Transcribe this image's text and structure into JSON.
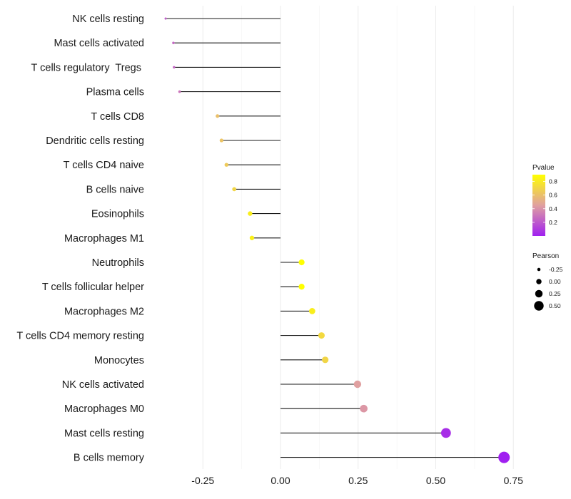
{
  "chart_data": {
    "type": "lollipop",
    "title": "",
    "xlabel": "",
    "ylabel": "",
    "xlim": [
      -0.37,
      0.77
    ],
    "x_ticks": [
      -0.25,
      0.0,
      0.25,
      0.5,
      0.75
    ],
    "x_tick_labels": [
      "-0.25",
      "0.00",
      "0.25",
      "0.50",
      "0.75"
    ],
    "categories": [
      "NK cells resting",
      "Mast cells activated",
      "T cells regulatory  Tregs ",
      "Plasma cells",
      "T cells CD8",
      "Dendritic cells resting",
      "T cells CD4 naive",
      "B cells naive",
      "Eosinophils",
      "Macrophages M1",
      "Neutrophils",
      "T cells follicular helper",
      "Macrophages M2",
      "T cells CD4 memory resting",
      "Monocytes",
      "NK cells activated",
      "Macrophages M0",
      "Mast cells resting",
      "B cells memory"
    ],
    "pearson": [
      -0.37,
      -0.345,
      -0.343,
      -0.325,
      -0.203,
      -0.19,
      -0.174,
      -0.149,
      -0.098,
      -0.092,
      0.068,
      0.068,
      0.102,
      0.132,
      0.144,
      0.248,
      0.268,
      0.533,
      0.72
    ],
    "pvalue": [
      0.22,
      0.25,
      0.25,
      0.3,
      0.6,
      0.62,
      0.65,
      0.7,
      0.82,
      0.83,
      0.9,
      0.9,
      0.82,
      0.72,
      0.7,
      0.45,
      0.42,
      0.05,
      0.0
    ],
    "grid": true,
    "legend": [
      {
        "title": "Pvalue",
        "type": "color",
        "range": [
          0.0,
          0.9
        ],
        "ticks": [
          0.2,
          0.4,
          0.6,
          0.8
        ],
        "tick_labels": [
          "0.2",
          "0.4",
          "0.6",
          "0.8"
        ],
        "low_color": "#a020f0",
        "mid_color": "#e0a0a0",
        "high_color": "#ffff00",
        "placement": "right"
      },
      {
        "title": "Pearson",
        "type": "size",
        "values": [
          -0.25,
          0.0,
          0.25,
          0.5
        ],
        "labels": [
          "-0.25",
          "0.00",
          "0.25",
          "0.50"
        ],
        "placement": "right"
      }
    ]
  }
}
